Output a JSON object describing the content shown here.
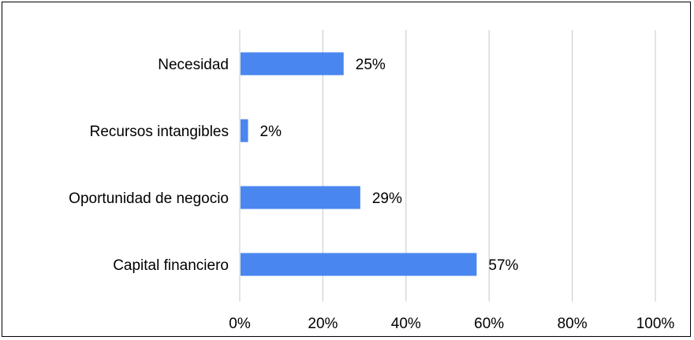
{
  "chart_data": {
    "type": "bar",
    "orientation": "horizontal",
    "title": "",
    "xlabel": "",
    "ylabel": "",
    "categories": [
      "Necesidad",
      "Recursos intangibles",
      "Oportunidad de negocio",
      "Capital financiero"
    ],
    "values": [
      25,
      2,
      29,
      57
    ],
    "value_labels": [
      "25%",
      "2%",
      "29%",
      "57%"
    ],
    "xlim": [
      0,
      100
    ],
    "x_ticks": [
      0,
      20,
      40,
      60,
      80,
      100
    ],
    "x_tick_labels": [
      "0%",
      "20%",
      "40%",
      "60%",
      "80%",
      "100%"
    ],
    "grid": "vertical",
    "legend": "none",
    "bar_color": "#4A86F0",
    "grid_color": "#D0D0D0"
  }
}
